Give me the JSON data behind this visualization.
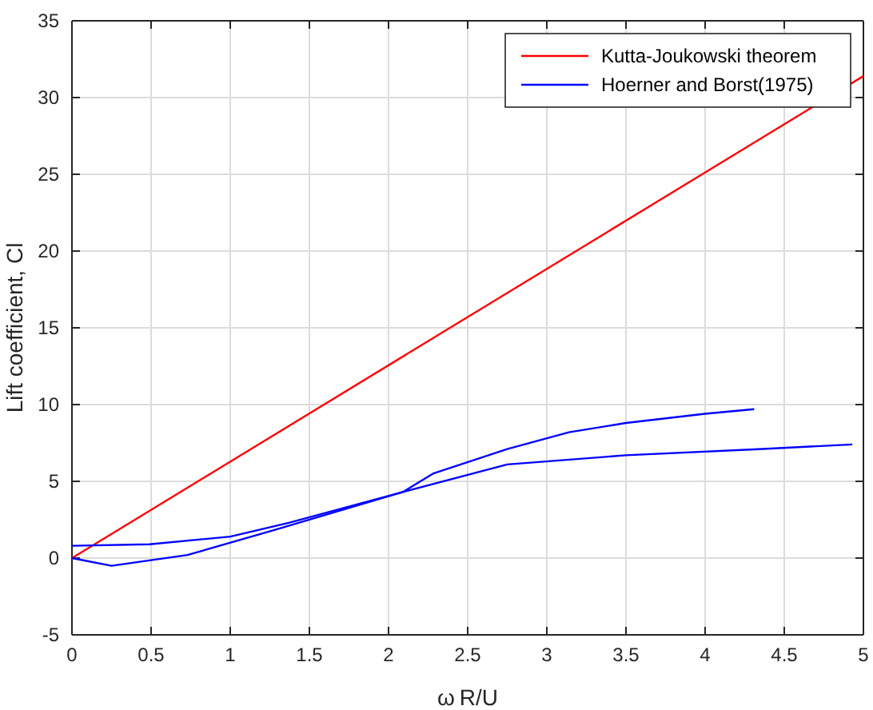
{
  "chart_data": {
    "type": "line",
    "xlabel": "ω$_{,}$R/U",
    "ylabel": "Lift coefficient, Cl",
    "xlim": [
      0,
      5
    ],
    "xticks": [
      0,
      0.5,
      1,
      1.5,
      2,
      2.5,
      3,
      3.5,
      4,
      4.5,
      5
    ],
    "ylim": [
      -5,
      35
    ],
    "yticks": [
      -5,
      0,
      5,
      10,
      15,
      20,
      25,
      30,
      35
    ],
    "grid": true,
    "legend": "top right",
    "line_style": "solid",
    "marker": "none",
    "series": [
      {
        "name": "Kutta-Joukowski theorem",
        "color": "#ff0000",
        "x": [
          0,
          5
        ],
        "values": [
          0,
          31.4
        ]
      },
      {
        "name": "Hoerner and Borst(1975)",
        "color": "#0000ff",
        "x": [
          0,
          0.25,
          0.73,
          1.27,
          2.09,
          2.28,
          2.75,
          3.14,
          3.5,
          4.0,
          4.31
        ],
        "values": [
          0,
          -0.5,
          0.2,
          1.8,
          4.3,
          5.5,
          7.1,
          8.2,
          8.8,
          9.4,
          9.7
        ]
      },
      {
        "color": "#0000ff",
        "x": [
          0,
          0.49,
          1.0,
          1.37,
          2.09,
          2.75,
          3.5,
          4.34,
          4.93
        ],
        "values": [
          0.8,
          0.9,
          1.4,
          2.3,
          4.3,
          6.1,
          6.7,
          7.1,
          7.4
        ]
      }
    ]
  }
}
